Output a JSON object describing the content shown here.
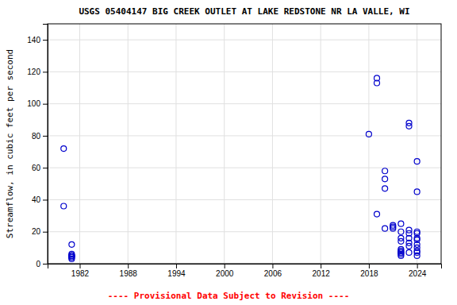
{
  "chart_data": {
    "type": "scatter",
    "title": "USGS 05404147 BIG CREEK OUTLET AT LAKE REDSTONE NR LA VALLE, WI",
    "ylabel": "Streamflow, in cubic feet per second",
    "annotations": [
      {
        "text": "---- Provisional Data Subject to Revision ----",
        "color": "#ff0000"
      }
    ],
    "x": [
      1980,
      1980,
      1981,
      1981,
      1981,
      1981,
      1981,
      1981,
      1981,
      1981,
      2018,
      2019,
      2019,
      2019,
      2020,
      2020,
      2020,
      2020,
      2021,
      2021,
      2021,
      2022,
      2022,
      2022,
      2022,
      2022,
      2022,
      2022,
      2022,
      2022,
      2022,
      2023,
      2023,
      2023,
      2023,
      2023,
      2023,
      2023,
      2023,
      2024,
      2024,
      2024,
      2024,
      2024,
      2024,
      2024,
      2024,
      2024,
      2024,
      2024
    ],
    "values": [
      72,
      36,
      12,
      5,
      4,
      5,
      6,
      5,
      4,
      3,
      81,
      116,
      113,
      31,
      53,
      47,
      58,
      22,
      23,
      24,
      22,
      25,
      20,
      16,
      14,
      9,
      8,
      7,
      7,
      6,
      5,
      86,
      88,
      21,
      19,
      16,
      13,
      11,
      7,
      64,
      45,
      20,
      19,
      16,
      15,
      12,
      10,
      8,
      7,
      5
    ],
    "color": "#0000CC",
    "marker": "open-circle",
    "xlim": [
      1978,
      2027
    ],
    "ylim": [
      0,
      150
    ],
    "xticks": [
      1982,
      1988,
      1994,
      2000,
      2006,
      2012,
      2018,
      2024
    ],
    "yticks": [
      0,
      20,
      40,
      60,
      80,
      100,
      120,
      140
    ],
    "grid": true
  }
}
